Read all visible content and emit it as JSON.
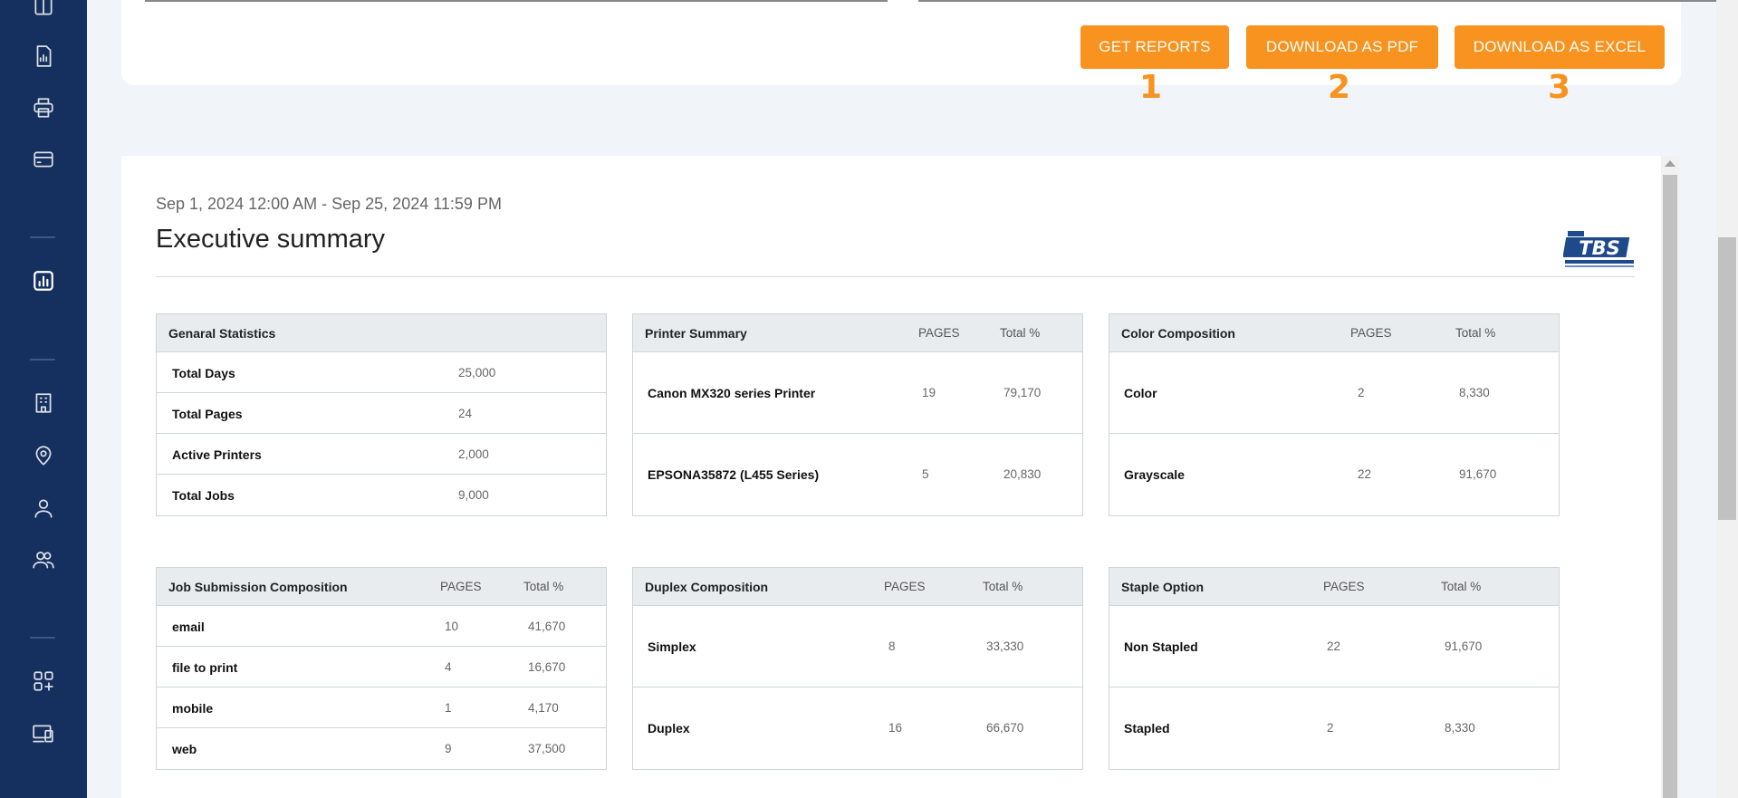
{
  "sidebar": {
    "icons": [
      "table-icon",
      "document-chart-icon",
      "printer-icon",
      "card-icon",
      "report-chart-icon",
      "building-icon",
      "location-icon",
      "user-icon",
      "users-icon",
      "add-apps-icon",
      "devices-icon"
    ]
  },
  "toolbar": {
    "get_reports_label": "GET REPORTS",
    "download_pdf_label": "DOWNLOAD AS PDF",
    "download_excel_label": "DOWNLOAD AS EXCEL",
    "annotations": [
      "1",
      "2",
      "3"
    ],
    "accent_color": "#f7931e"
  },
  "report": {
    "date_range": "Sep 1, 2024 12:00 AM - Sep 25, 2024 11:59 PM",
    "title": "Executive summary",
    "logo_text": "TBS",
    "general": {
      "title": "Genaral Statistics",
      "rows": [
        {
          "label": "Total Days",
          "value": "25,000"
        },
        {
          "label": "Total Pages",
          "value": "24"
        },
        {
          "label": "Active Printers",
          "value": "2,000"
        },
        {
          "label": "Total Jobs",
          "value": "9,000"
        }
      ]
    },
    "printer": {
      "title": "Printer Summary",
      "col1": "PAGES",
      "col2": "Total %",
      "rows": [
        {
          "label": "Canon MX320 series Printer",
          "pages": "19",
          "pct": "79,170"
        },
        {
          "label": "EPSONA35872 (L455 Series)",
          "pages": "5",
          "pct": "20,830"
        }
      ]
    },
    "color": {
      "title": "Color Composition",
      "col1": "PAGES",
      "col2": "Total %",
      "rows": [
        {
          "label": "Color",
          "pages": "2",
          "pct": "8,330"
        },
        {
          "label": "Grayscale",
          "pages": "22",
          "pct": "91,670"
        }
      ]
    },
    "job": {
      "title": "Job Submission Composition",
      "col1": "PAGES",
      "col2": "Total %",
      "rows": [
        {
          "label": "email",
          "pages": "10",
          "pct": "41,670"
        },
        {
          "label": "file to print",
          "pages": "4",
          "pct": "16,670"
        },
        {
          "label": "mobile",
          "pages": "1",
          "pct": "4,170"
        },
        {
          "label": "web",
          "pages": "9",
          "pct": "37,500"
        }
      ]
    },
    "duplex": {
      "title": "Duplex Composition",
      "col1": "PAGES",
      "col2": "Total %",
      "rows": [
        {
          "label": "Simplex",
          "pages": "8",
          "pct": "33,330"
        },
        {
          "label": "Duplex",
          "pages": "16",
          "pct": "66,670"
        }
      ]
    },
    "staple": {
      "title": "Staple Option",
      "col1": "PAGES",
      "col2": "Total %",
      "rows": [
        {
          "label": "Non Stapled",
          "pages": "22",
          "pct": "91,670"
        },
        {
          "label": "Stapled",
          "pages": "2",
          "pct": "8,330"
        }
      ]
    }
  }
}
